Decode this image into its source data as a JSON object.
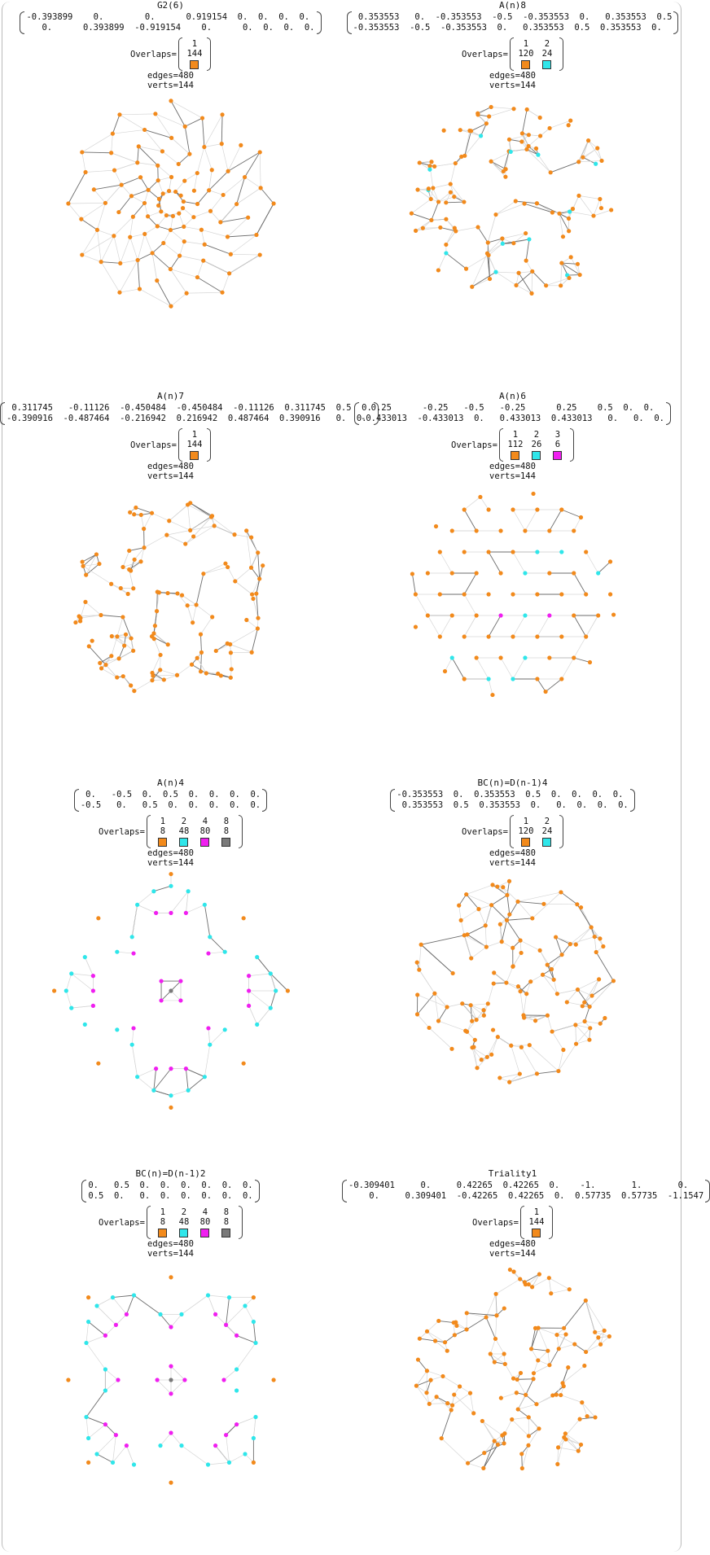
{
  "labels": {
    "overlaps": "Overlaps=",
    "edges_prefix": "edges=",
    "verts_prefix": "verts="
  },
  "colors": {
    "orange": "#f28a1c",
    "cyan": "#2fe6ea",
    "magenta": "#f01ff0",
    "gray": "#7a7a7a",
    "edge_light": "#d6d6d6",
    "edge_dark": "#6e6e6e"
  },
  "panels": [
    {
      "title": "G2(6)",
      "matrix_rows": [
        "-0.393899    0.        0.      0.919154  0.  0.  0.  0.",
        "   0.      0.393899  -0.919154    0.      0.  0.  0.  0."
      ],
      "overlaps": [
        {
          "count": "1",
          "value": "144",
          "color": "orange"
        }
      ],
      "edges": "480",
      "verts": "144",
      "style": "sym12"
    },
    {
      "title": "A(n)8",
      "matrix_rows": [
        " 0.353553   0.  -0.353553  -0.5  -0.353553  0.   0.353553  0.5",
        "-0.353553  -0.5  -0.353553  0.   0.353553  0.5  0.353553  0."
      ],
      "overlaps": [
        {
          "count": "1",
          "value": "120",
          "color": "orange"
        },
        {
          "count": "2",
          "value": "24",
          "color": "cyan"
        }
      ],
      "edges": "480",
      "verts": "144",
      "style": "random"
    },
    {
      "title": "A(n)7",
      "matrix_rows": [
        " 0.311745   -0.11126  -0.450484  -0.450484  -0.11126  0.311745  0.5  0.",
        "-0.390916  -0.487464  -0.216942  0.216942  0.487464  0.390916   0.  0."
      ],
      "overlaps": [
        {
          "count": "1",
          "value": "144",
          "color": "orange"
        }
      ],
      "edges": "480",
      "verts": "144",
      "style": "random"
    },
    {
      "title": "A(n)6",
      "matrix_rows": [
        "  0.25      -0.25   -0.5   -0.25      0.25    0.5  0.  0.",
        "-0.433013  -0.433013  0.   0.433013  0.433013   0.   0.  0."
      ],
      "overlaps": [
        {
          "count": "1",
          "value": "112",
          "color": "orange"
        },
        {
          "count": "2",
          "value": "26",
          "color": "cyan"
        },
        {
          "count": "3",
          "value": "6",
          "color": "magenta"
        }
      ],
      "edges": "480",
      "verts": "144",
      "style": "hex"
    },
    {
      "title": "A(n)4",
      "matrix_rows": [
        " 0.   -0.5  0.  0.5  0.  0.  0.  0.",
        "-0.5   0.   0.5  0.  0.  0.  0.  0."
      ],
      "overlaps": [
        {
          "count": "1",
          "value": "8",
          "color": "orange"
        },
        {
          "count": "2",
          "value": "48",
          "color": "cyan"
        },
        {
          "count": "4",
          "value": "80",
          "color": "magenta"
        },
        {
          "count": "8",
          "value": "8",
          "color": "gray"
        }
      ],
      "edges": "480",
      "verts": "144",
      "style": "square45"
    },
    {
      "title": "BC(n)=D(n-1)4",
      "matrix_rows": [
        "-0.353553  0.  0.353553  0.5  0.  0.  0.  0.",
        " 0.353553  0.5  0.353553  0.   0.  0.  0.  0."
      ],
      "overlaps": [
        {
          "count": "1",
          "value": "120",
          "color": "orange"
        },
        {
          "count": "2",
          "value": "24",
          "color": "cyan"
        }
      ],
      "edges": "480",
      "verts": "144",
      "style": "random"
    },
    {
      "title": "BC(n)=D(n-1)2",
      "matrix_rows": [
        "0.   0.5  0.  0.  0.  0.  0.  0.",
        "0.5  0.   0.  0.  0.  0.  0.  0."
      ],
      "overlaps": [
        {
          "count": "1",
          "value": "8",
          "color": "orange"
        },
        {
          "count": "2",
          "value": "48",
          "color": "cyan"
        },
        {
          "count": "4",
          "value": "80",
          "color": "magenta"
        },
        {
          "count": "8",
          "value": "8",
          "color": "gray"
        }
      ],
      "edges": "480",
      "verts": "144",
      "style": "square"
    },
    {
      "title": "Triality1",
      "matrix_rows": [
        "-0.309401     0.     0.42265  0.42265  0.    -1.       1.       0.",
        "    0.     0.309401  -0.42265  0.42265  0.  0.57735  0.57735  -1.1547"
      ],
      "overlaps": [
        {
          "count": "1",
          "value": "144",
          "color": "orange"
        }
      ],
      "edges": "480",
      "verts": "144",
      "style": "random"
    }
  ]
}
